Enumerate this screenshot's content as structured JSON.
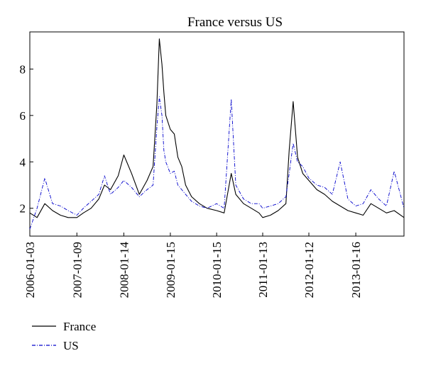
{
  "chart_data": {
    "type": "line",
    "title": "France versus US",
    "xlabel": "",
    "ylabel": "",
    "x_range": [
      "2006-01-03",
      "2014-01-31"
    ],
    "ylim": [
      0.8,
      9.6
    ],
    "y_ticks": [
      2,
      4,
      6,
      8
    ],
    "x_ticks": [
      "2006-01-03",
      "2007-01-09",
      "2008-01-14",
      "2009-01-15",
      "2010-01-15",
      "2011-01-13",
      "2012-01-12",
      "2013-01-16"
    ],
    "grid": false,
    "legend_position": "bottom-left",
    "series": [
      {
        "name": "France",
        "color": "#000000",
        "line_style": "solid",
        "x": [
          "2006-01-03",
          "2006-03-01",
          "2006-05-01",
          "2006-07-01",
          "2006-09-01",
          "2006-11-01",
          "2007-01-09",
          "2007-03-01",
          "2007-05-01",
          "2007-07-01",
          "2007-08-15",
          "2007-10-01",
          "2007-12-01",
          "2008-01-14",
          "2008-03-15",
          "2008-05-15",
          "2008-07-15",
          "2008-09-01",
          "2008-10-01",
          "2008-10-20",
          "2008-11-10",
          "2008-11-25",
          "2008-12-10",
          "2009-01-15",
          "2009-02-15",
          "2009-03-15",
          "2009-04-15",
          "2009-05-15",
          "2009-07-01",
          "2009-09-01",
          "2009-11-01",
          "2010-01-15",
          "2010-03-15",
          "2010-05-10",
          "2010-06-15",
          "2010-08-15",
          "2010-10-15",
          "2010-12-15",
          "2011-01-13",
          "2011-03-15",
          "2011-05-15",
          "2011-07-15",
          "2011-08-10",
          "2011-09-10",
          "2011-10-15",
          "2011-11-25",
          "2012-01-12",
          "2012-03-15",
          "2012-05-15",
          "2012-07-15",
          "2012-09-15",
          "2012-11-15",
          "2013-01-16",
          "2013-03-15",
          "2013-05-15",
          "2013-07-15",
          "2013-09-15",
          "2013-11-15",
          "2014-01-31"
        ],
        "values": [
          1.8,
          1.6,
          2.2,
          1.9,
          1.7,
          1.6,
          1.6,
          1.8,
          2.0,
          2.4,
          3.0,
          2.8,
          3.4,
          4.3,
          3.5,
          2.6,
          3.2,
          3.8,
          6.5,
          9.3,
          8.2,
          7.0,
          6.0,
          5.4,
          5.2,
          4.2,
          3.8,
          3.0,
          2.5,
          2.2,
          2.0,
          1.9,
          1.8,
          3.5,
          2.6,
          2.2,
          2.0,
          1.8,
          1.6,
          1.7,
          1.9,
          2.2,
          4.5,
          6.6,
          4.2,
          3.5,
          3.2,
          2.8,
          2.6,
          2.3,
          2.1,
          1.9,
          1.8,
          1.7,
          2.2,
          2.0,
          1.8,
          1.9,
          1.6
        ]
      },
      {
        "name": "US",
        "color": "#0000cc",
        "line_style": "dash-dot",
        "x": [
          "2006-01-03",
          "2006-03-01",
          "2006-05-01",
          "2006-07-01",
          "2006-09-01",
          "2006-11-01",
          "2007-01-09",
          "2007-03-01",
          "2007-05-01",
          "2007-07-01",
          "2007-08-15",
          "2007-10-01",
          "2007-12-01",
          "2008-01-14",
          "2008-03-15",
          "2008-05-15",
          "2008-07-15",
          "2008-09-01",
          "2008-10-01",
          "2008-10-20",
          "2008-11-10",
          "2008-11-25",
          "2008-12-10",
          "2009-01-15",
          "2009-02-15",
          "2009-03-15",
          "2009-04-15",
          "2009-05-15",
          "2009-07-01",
          "2009-09-01",
          "2009-11-01",
          "2010-01-15",
          "2010-03-15",
          "2010-05-10",
          "2010-06-15",
          "2010-08-15",
          "2010-10-15",
          "2010-12-15",
          "2011-01-13",
          "2011-03-15",
          "2011-05-15",
          "2011-07-15",
          "2011-08-10",
          "2011-09-10",
          "2011-10-15",
          "2011-11-25",
          "2012-01-12",
          "2012-03-15",
          "2012-05-15",
          "2012-07-15",
          "2012-09-15",
          "2012-11-15",
          "2013-01-16",
          "2013-03-15",
          "2013-05-15",
          "2013-07-15",
          "2013-09-15",
          "2013-11-15",
          "2014-01-31"
        ],
        "values": [
          1.1,
          2.0,
          3.3,
          2.2,
          2.1,
          1.9,
          1.7,
          2.0,
          2.3,
          2.6,
          3.4,
          2.6,
          2.9,
          3.2,
          2.9,
          2.5,
          2.8,
          3.0,
          5.5,
          6.8,
          6.0,
          4.5,
          4.0,
          3.5,
          3.6,
          3.0,
          2.8,
          2.6,
          2.3,
          2.1,
          2.0,
          2.2,
          2.0,
          6.7,
          3.0,
          2.4,
          2.2,
          2.2,
          2.0,
          2.1,
          2.2,
          2.5,
          3.5,
          4.8,
          4.0,
          3.8,
          3.3,
          3.0,
          2.9,
          2.6,
          4.0,
          2.4,
          2.1,
          2.2,
          2.8,
          2.4,
          2.1,
          3.6,
          2.0
        ]
      }
    ]
  }
}
